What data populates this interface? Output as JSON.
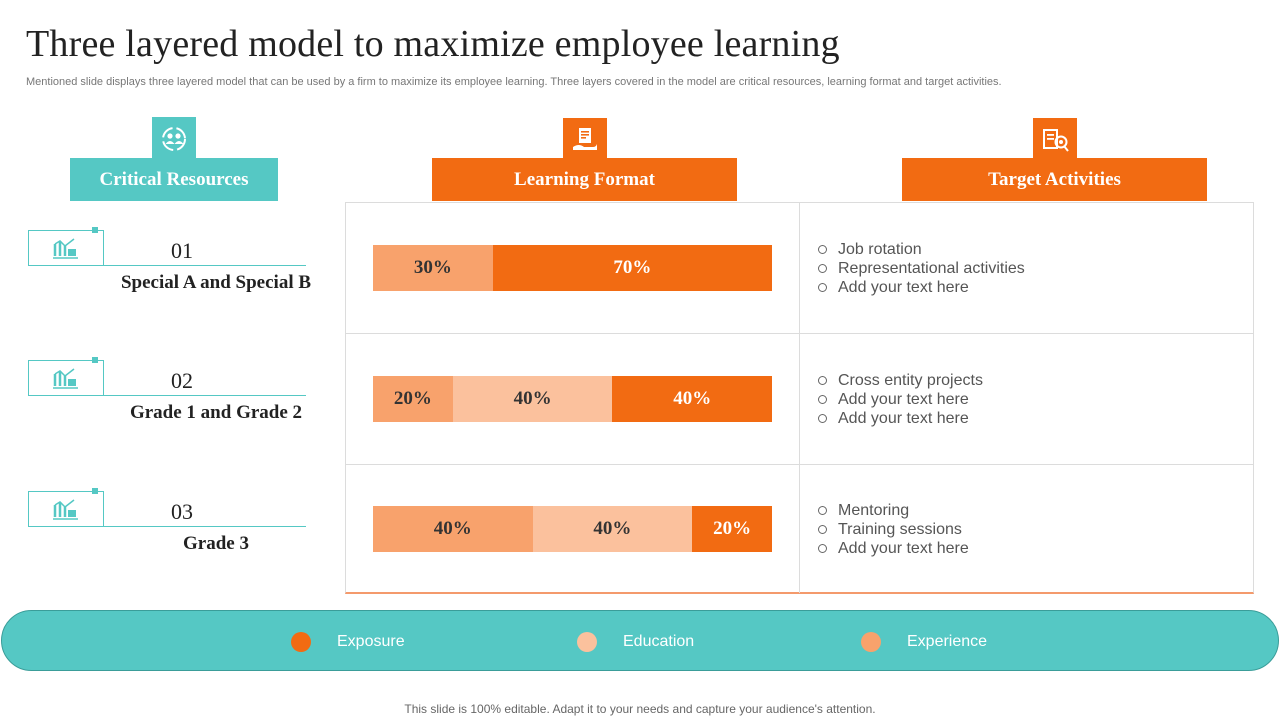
{
  "title": "Three layered model to maximize employee learning",
  "subtitle": "Mentioned slide displays three layered model that can be used by a firm to maximize its employee learning. Three layers covered in the model are critical resources, learning format and target activities.",
  "colors": {
    "teal": "#55c8c4",
    "orange": "#f26b12",
    "exposure": "#f26b12",
    "education": "#fbc19d",
    "experience": "#f8a26c"
  },
  "columns": [
    {
      "label": "Critical Resources",
      "icon": "group-cycle-icon"
    },
    {
      "label": "Learning Format",
      "icon": "document-hand-icon"
    },
    {
      "label": "Target Activities",
      "icon": "document-target-icon"
    }
  ],
  "resources": [
    {
      "number": "01",
      "name": "Special A and Special B",
      "icon": "chart-bars-icon"
    },
    {
      "number": "02",
      "name": "Grade 1 and Grade 2",
      "icon": "chart-bars-icon"
    },
    {
      "number": "03",
      "name": "Grade 3",
      "icon": "chart-bars-icon"
    }
  ],
  "formats": [
    {
      "segments": [
        {
          "label": "30%",
          "value": 30,
          "category": "experience"
        },
        {
          "label": "70%",
          "value": 70,
          "category": "exposure"
        }
      ]
    },
    {
      "segments": [
        {
          "label": "20%",
          "value": 20,
          "category": "experience"
        },
        {
          "label": "40%",
          "value": 40,
          "category": "education"
        },
        {
          "label": "40%",
          "value": 40,
          "category": "exposure"
        }
      ]
    },
    {
      "segments": [
        {
          "label": "40%",
          "value": 40,
          "category": "experience"
        },
        {
          "label": "40%",
          "value": 40,
          "category": "education"
        },
        {
          "label": "20%",
          "value": 20,
          "category": "exposure"
        }
      ]
    }
  ],
  "activities": [
    [
      "Job rotation",
      "Representational activities",
      "Add your text here"
    ],
    [
      "Cross entity projects",
      "Add your text here",
      "Add your text here"
    ],
    [
      "Mentoring",
      "Training sessions",
      "Add your text here"
    ]
  ],
  "legend": [
    {
      "key": "exposure",
      "label": "Exposure"
    },
    {
      "key": "education",
      "label": "Education"
    },
    {
      "key": "experience",
      "label": "Experience"
    }
  ],
  "footer": "This slide is 100% editable. Adapt it to your needs and capture your audience's attention."
}
